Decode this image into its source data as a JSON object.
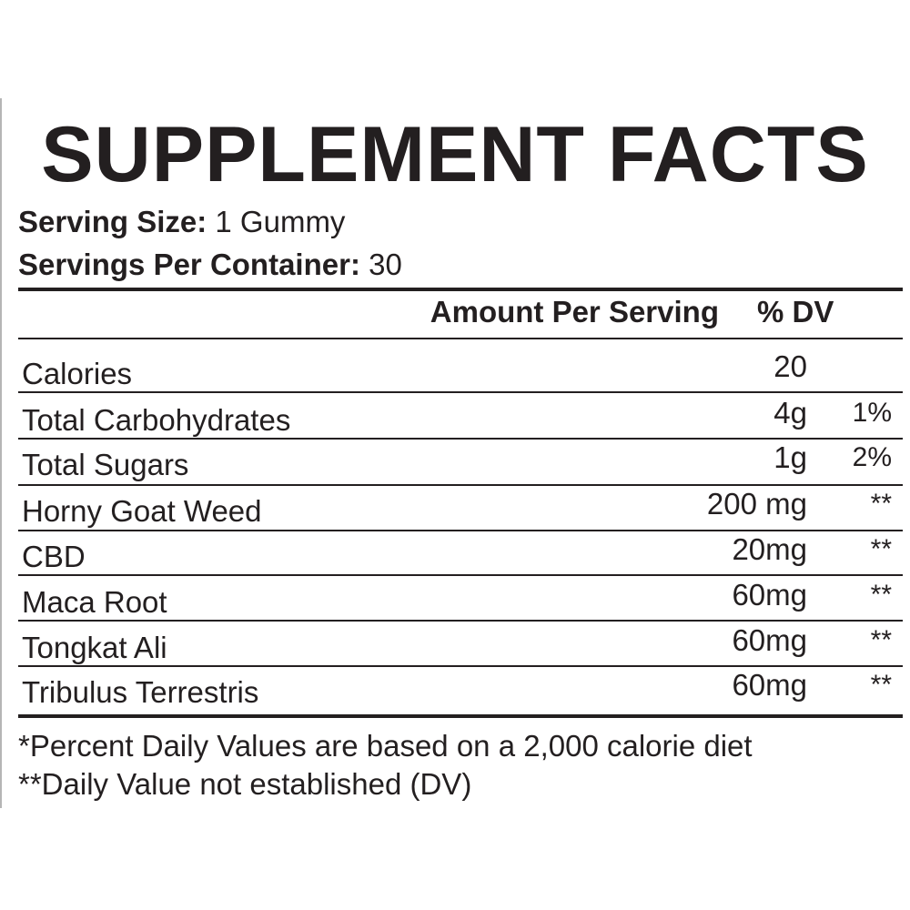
{
  "title": "SUPPLEMENT FACTS",
  "serving": {
    "size_label": "Serving Size:",
    "size_value": "1 Gummy",
    "per_container_label": "Servings Per Container:",
    "per_container_value": "30"
  },
  "columns": {
    "amount": "Amount Per Serving",
    "dv": "% DV"
  },
  "rows": [
    {
      "name": "Calories",
      "amount": "20",
      "dv": ""
    },
    {
      "name": "Total Carbohydrates",
      "amount": "4g",
      "dv": "1%"
    },
    {
      "name": "Total Sugars",
      "amount": "1g",
      "dv": "2%"
    },
    {
      "name": "Horny Goat Weed",
      "amount": "200 mg",
      "dv": "**"
    },
    {
      "name": "CBD",
      "amount": "20mg",
      "dv": "**"
    },
    {
      "name": "Maca Root",
      "amount": "60mg",
      "dv": "**"
    },
    {
      "name": "Tongkat Ali",
      "amount": "60mg",
      "dv": "**"
    },
    {
      "name": "Tribulus Terrestris",
      "amount": "60mg",
      "dv": "**"
    }
  ],
  "footnotes": [
    "*Percent Daily Values are based on a 2,000 calorie diet",
    "**Daily Value not established (DV)"
  ]
}
